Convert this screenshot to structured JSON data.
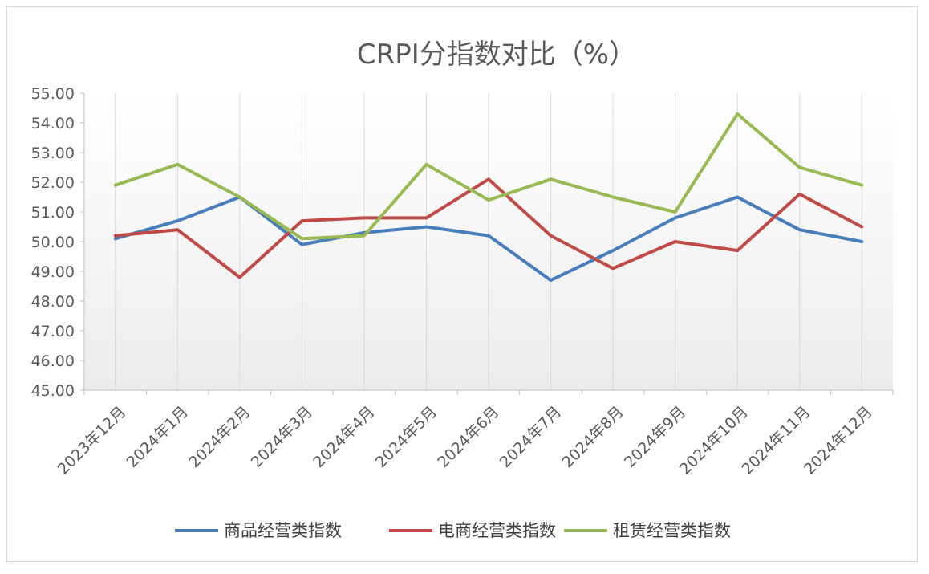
{
  "chart_data": {
    "type": "line",
    "title": "CRPI分指数对比（%）",
    "xlabel": "",
    "ylabel": "",
    "categories": [
      "2023年12月",
      "2024年1月",
      "2024年2月",
      "2024年3月",
      "2024年4月",
      "2024年5月",
      "2024年6月",
      "2024年7月",
      "2024年8月",
      "2024年9月",
      "2024年10月",
      "2024年11月",
      "2024年12月"
    ],
    "ylim": [
      45,
      55
    ],
    "yticks": [
      "45.00",
      "46.00",
      "47.00",
      "48.00",
      "49.00",
      "50.00",
      "51.00",
      "52.00",
      "53.00",
      "54.00",
      "55.00"
    ],
    "grid": "vertical",
    "legend_position": "bottom",
    "series": [
      {
        "name": "商品经营类指数",
        "color": "#4a7ebb",
        "values": [
          50.1,
          50.7,
          51.5,
          49.9,
          50.3,
          50.5,
          50.2,
          48.7,
          49.7,
          50.8,
          51.5,
          50.4,
          50.0
        ]
      },
      {
        "name": "电商经营类指数",
        "color": "#be4b48",
        "values": [
          50.2,
          50.4,
          48.8,
          50.7,
          50.8,
          50.8,
          52.1,
          50.2,
          49.1,
          50.0,
          49.7,
          51.6,
          50.5
        ]
      },
      {
        "name": "租赁经营类指数",
        "color": "#98b954",
        "values": [
          51.9,
          52.6,
          51.5,
          50.1,
          50.2,
          52.6,
          51.4,
          52.1,
          51.5,
          51.0,
          54.3,
          52.5,
          51.9
        ]
      }
    ]
  }
}
